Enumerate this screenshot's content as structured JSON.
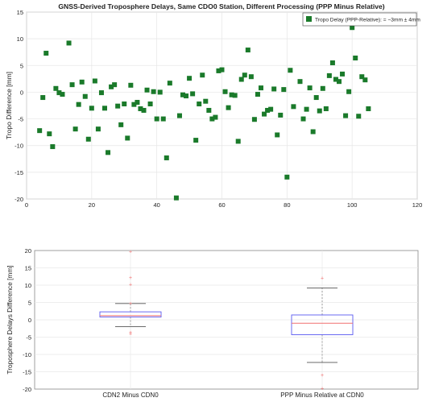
{
  "chart_data": [
    {
      "type": "scatter",
      "title": "GNSS-Derived Troposphere Delays, Same CDO0 Station, Different Processing (PPP Minus Relative)",
      "xlabel": "",
      "ylabel": "Tropo Difference [mm]",
      "xlim": [
        0,
        120
      ],
      "ylim": [
        -20,
        15
      ],
      "xticks": [
        0,
        20,
        40,
        60,
        80,
        100,
        120
      ],
      "yticks": [
        -20,
        -15,
        -10,
        -5,
        0,
        5,
        10,
        15
      ],
      "grid": true,
      "legend": {
        "label": "Tropo Delay (PPP-Relative): = −3mm ± 4mm",
        "placement": "top-right"
      },
      "series": [
        {
          "name": "Tropo Delay (PPP-Relative): = −3mm ± 4mm",
          "color": "#1a7a2a",
          "x": [
            4,
            5,
            6,
            7,
            8,
            9,
            10,
            11,
            13,
            14,
            15,
            16,
            17,
            18,
            19,
            20,
            21,
            22,
            23,
            24,
            25,
            26,
            27,
            28,
            29,
            30,
            31,
            32,
            33,
            34,
            35,
            36,
            37,
            38,
            39,
            40,
            41,
            42,
            43,
            44,
            46,
            47,
            48,
            49,
            50,
            51,
            52,
            53,
            54,
            55,
            56,
            57,
            58,
            59,
            60,
            61,
            62,
            63,
            64,
            65,
            66,
            67,
            68,
            69,
            70,
            71,
            72,
            73,
            74,
            75,
            76,
            77,
            78,
            79,
            80,
            81,
            82,
            84,
            85,
            86,
            87,
            88,
            89,
            90,
            91,
            92,
            93,
            94,
            95,
            96,
            97,
            98,
            99,
            100,
            101,
            102,
            103,
            104,
            105
          ],
          "y": [
            -7.2,
            -1.0,
            7.3,
            -7.8,
            -10.2,
            0.7,
            -0.1,
            -0.4,
            9.2,
            1.4,
            -6.9,
            -2.3,
            1.9,
            -0.8,
            -8.8,
            -3.0,
            2.1,
            -6.9,
            -0.1,
            -3.0,
            -11.3,
            1.0,
            1.4,
            -2.6,
            -6.1,
            -2.2,
            -8.6,
            1.3,
            -2.3,
            -1.9,
            -3.1,
            -3.4,
            0.4,
            -2.2,
            0.1,
            -5.0,
            0.0,
            -5.0,
            -12.3,
            1.7,
            -19.8,
            -4.4,
            -0.5,
            -0.7,
            2.6,
            -0.3,
            -9.0,
            -2.2,
            3.2,
            -1.7,
            -3.4,
            -5.0,
            -4.7,
            4.0,
            4.2,
            0.1,
            -2.9,
            -0.5,
            -0.6,
            -9.2,
            2.4,
            3.2,
            7.9,
            2.9,
            -5.1,
            -0.4,
            0.8,
            -4.1,
            -3.4,
            -3.2,
            0.6,
            -8.0,
            -4.3,
            0.5,
            -15.9,
            4.1,
            -2.7,
            2.0,
            -5.0,
            -3.2,
            0.8,
            -7.4,
            -1.0,
            -3.5,
            0.7,
            -3.1,
            3.1,
            5.5,
            2.4,
            2.0,
            3.4,
            -4.4,
            0.1,
            12.1,
            6.4,
            -4.5,
            2.9,
            2.3,
            -3.1
          ]
        }
      ]
    },
    {
      "type": "box",
      "title": "",
      "xlabel": "",
      "ylabel": "Troposphere Delays Difference [mm]",
      "ylim": [
        -20,
        20
      ],
      "yticks": [
        -20,
        -15,
        -10,
        -5,
        0,
        5,
        10,
        15,
        20
      ],
      "categories": [
        "CDN2 Minus CDN0",
        "PPP Minus Relative at CDN0"
      ],
      "boxes": [
        {
          "name": "CDN2 Minus CDN0",
          "whisker_low": -2.0,
          "q1": 0.8,
          "median": 1.2,
          "q3": 2.3,
          "whisker_high": 4.7,
          "outliers": [
            -4.0,
            -3.6,
            4.8,
            10.2,
            12.2,
            19.8
          ]
        },
        {
          "name": "PPP Minus Relative at CDN0",
          "whisker_low": -12.3,
          "q1": -4.3,
          "median": -1.0,
          "q3": 1.4,
          "whisker_high": 9.2,
          "outliers": [
            12.1,
            -15.9,
            -19.8
          ]
        }
      ],
      "colors": {
        "box": "#5a5af0",
        "median": "#f07070",
        "whisker": "#888888",
        "outlier": "#f07070"
      }
    }
  ]
}
